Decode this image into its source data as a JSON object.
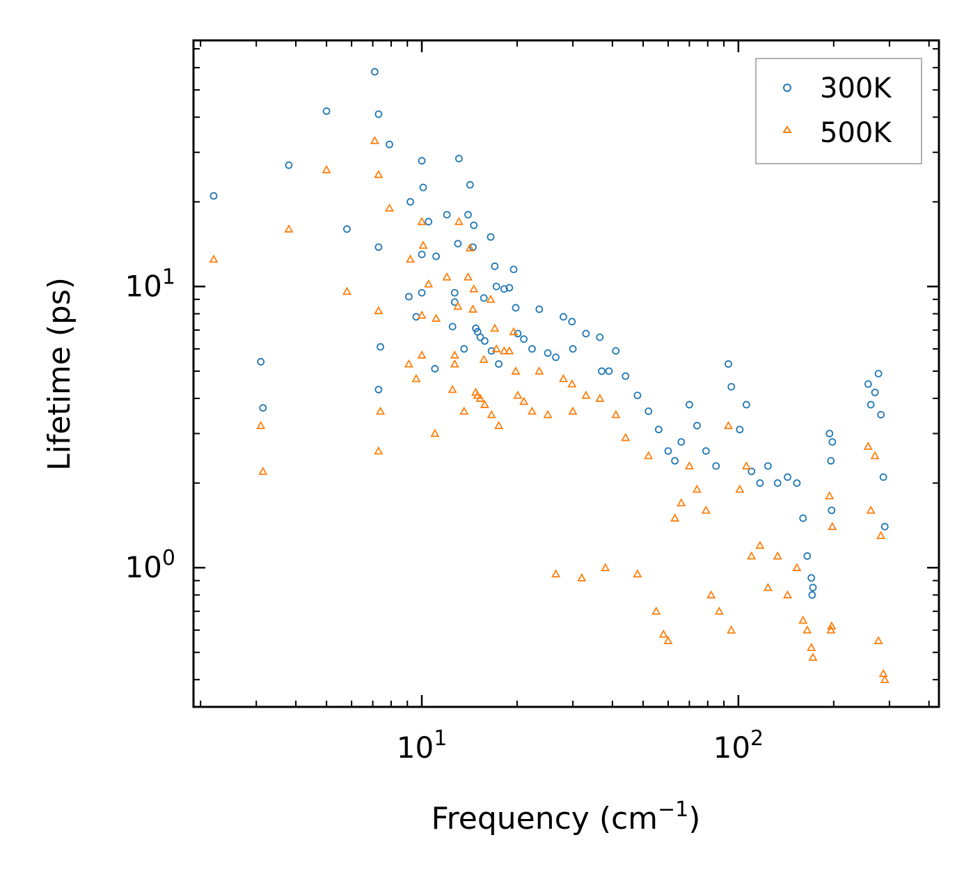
{
  "chart_data": {
    "type": "scatter",
    "title": "",
    "xlabel": "Frequency (cm",
    "xlabel_sup": "−1",
    "xlabel_close": ")",
    "ylabel": "Lifetime (ps)",
    "xscale": "log",
    "yscale": "log",
    "xlim": [
      1.9,
      430
    ],
    "ylim": [
      0.32,
      75
    ],
    "x_major_ticks": [
      {
        "value": 10,
        "base": "10",
        "exp": "1"
      },
      {
        "value": 100,
        "base": "10",
        "exp": "2"
      }
    ],
    "y_major_ticks": [
      {
        "value": 1,
        "base": "10",
        "exp": "0"
      },
      {
        "value": 10,
        "base": "10",
        "exp": "1"
      }
    ],
    "legend_position": "top-right",
    "series": [
      {
        "name": "300K",
        "marker": "circle",
        "color": "#1f77b4",
        "points": [
          [
            2.2,
            21.0
          ],
          [
            3.1,
            5.4
          ],
          [
            3.15,
            3.7
          ],
          [
            3.8,
            27.0
          ],
          [
            5.0,
            42.0
          ],
          [
            5.8,
            16.0
          ],
          [
            7.1,
            58.0
          ],
          [
            7.3,
            41.0
          ],
          [
            7.3,
            13.8
          ],
          [
            7.4,
            6.1
          ],
          [
            7.3,
            4.3
          ],
          [
            7.9,
            32.0
          ],
          [
            9.2,
            20.0
          ],
          [
            9.1,
            9.2
          ],
          [
            9.6,
            7.8
          ],
          [
            10.0,
            28.0
          ],
          [
            10.1,
            22.5
          ],
          [
            10.0,
            13.0
          ],
          [
            10.0,
            9.5
          ],
          [
            10.5,
            17.0
          ],
          [
            11.1,
            12.8
          ],
          [
            11.0,
            5.1
          ],
          [
            12.0,
            18.0
          ],
          [
            12.5,
            7.2
          ],
          [
            12.7,
            9.5
          ],
          [
            12.7,
            8.8
          ],
          [
            13.0,
            14.2
          ],
          [
            13.1,
            28.5
          ],
          [
            13.6,
            6.0
          ],
          [
            14.0,
            18.0
          ],
          [
            14.2,
            23.0
          ],
          [
            14.6,
            16.5
          ],
          [
            14.5,
            13.8
          ],
          [
            14.8,
            7.1
          ],
          [
            15.0,
            6.9
          ],
          [
            15.3,
            6.6
          ],
          [
            15.7,
            9.1
          ],
          [
            15.8,
            6.4
          ],
          [
            16.5,
            15.0
          ],
          [
            16.6,
            5.9
          ],
          [
            17.0,
            11.8
          ],
          [
            17.2,
            10.0
          ],
          [
            17.5,
            5.3
          ],
          [
            18.2,
            9.8
          ],
          [
            18.9,
            9.9
          ],
          [
            19.5,
            11.5
          ],
          [
            19.8,
            8.4
          ],
          [
            20.1,
            6.8
          ],
          [
            21.0,
            6.5
          ],
          [
            22.3,
            6.0
          ],
          [
            23.5,
            8.3
          ],
          [
            25.0,
            5.8
          ],
          [
            26.5,
            5.6
          ],
          [
            28.0,
            7.8
          ],
          [
            29.8,
            7.5
          ],
          [
            30.0,
            6.0
          ],
          [
            33.0,
            6.8
          ],
          [
            36.5,
            6.6
          ],
          [
            41.0,
            5.9
          ],
          [
            37.0,
            5.0
          ],
          [
            39.0,
            5.0
          ],
          [
            44.0,
            4.8
          ],
          [
            48.0,
            4.1
          ],
          [
            52.0,
            3.6
          ],
          [
            56.0,
            3.1
          ],
          [
            60.0,
            2.6
          ],
          [
            63.0,
            2.4
          ],
          [
            66.0,
            2.8
          ],
          [
            70.0,
            3.8
          ],
          [
            74.0,
            3.2
          ],
          [
            79.0,
            2.6
          ],
          [
            85.0,
            2.3
          ],
          [
            93.0,
            5.3
          ],
          [
            95.0,
            4.4
          ],
          [
            101.0,
            3.1
          ],
          [
            106.0,
            3.8
          ],
          [
            110.0,
            2.2
          ],
          [
            117.0,
            2.0
          ],
          [
            124.0,
            2.3
          ],
          [
            133.0,
            2.0
          ],
          [
            143.0,
            2.1
          ],
          [
            153.0,
            2.0
          ],
          [
            160.0,
            1.5
          ],
          [
            165.0,
            1.1
          ],
          [
            170.0,
            0.92
          ],
          [
            172.0,
            0.85
          ],
          [
            171.0,
            0.8
          ],
          [
            194.0,
            3.0
          ],
          [
            196.0,
            2.4
          ],
          [
            198.0,
            2.8
          ],
          [
            197.0,
            1.6
          ],
          [
            257.0,
            4.5
          ],
          [
            262.0,
            3.8
          ],
          [
            270.0,
            4.2
          ],
          [
            277.0,
            4.9
          ],
          [
            282.0,
            3.5
          ],
          [
            287.0,
            2.1
          ],
          [
            290.0,
            1.4
          ]
        ]
      },
      {
        "name": "500K",
        "marker": "triangle",
        "color": "#ff7f0e",
        "points": [
          [
            2.2,
            12.5
          ],
          [
            3.1,
            3.2
          ],
          [
            3.15,
            2.2
          ],
          [
            3.8,
            16.0
          ],
          [
            5.0,
            26.0
          ],
          [
            5.8,
            9.6
          ],
          [
            7.1,
            33.0
          ],
          [
            7.3,
            25.0
          ],
          [
            7.3,
            8.2
          ],
          [
            7.4,
            3.6
          ],
          [
            7.3,
            2.6
          ],
          [
            7.9,
            19.0
          ],
          [
            9.2,
            12.5
          ],
          [
            9.1,
            5.3
          ],
          [
            9.6,
            4.7
          ],
          [
            10.0,
            17.0
          ],
          [
            10.1,
            14.0
          ],
          [
            10.0,
            7.9
          ],
          [
            10.0,
            5.7
          ],
          [
            10.5,
            10.2
          ],
          [
            11.1,
            7.7
          ],
          [
            11.0,
            3.0
          ],
          [
            12.0,
            10.8
          ],
          [
            12.5,
            4.3
          ],
          [
            12.7,
            5.7
          ],
          [
            12.7,
            5.3
          ],
          [
            13.0,
            8.5
          ],
          [
            13.1,
            17.0
          ],
          [
            13.6,
            3.6
          ],
          [
            14.0,
            10.8
          ],
          [
            14.2,
            13.7
          ],
          [
            14.6,
            9.8
          ],
          [
            14.5,
            8.3
          ],
          [
            14.8,
            4.2
          ],
          [
            15.0,
            4.1
          ],
          [
            15.3,
            4.0
          ],
          [
            15.7,
            5.5
          ],
          [
            15.8,
            3.8
          ],
          [
            16.5,
            9.0
          ],
          [
            16.6,
            3.5
          ],
          [
            17.0,
            7.1
          ],
          [
            17.2,
            6.0
          ],
          [
            17.5,
            3.2
          ],
          [
            18.2,
            5.9
          ],
          [
            18.9,
            5.9
          ],
          [
            19.5,
            6.9
          ],
          [
            19.8,
            5.0
          ],
          [
            20.1,
            4.1
          ],
          [
            21.0,
            3.9
          ],
          [
            22.3,
            3.6
          ],
          [
            23.5,
            5.0
          ],
          [
            25.0,
            3.5
          ],
          [
            26.5,
            0.95
          ],
          [
            28.0,
            4.7
          ],
          [
            29.8,
            4.5
          ],
          [
            30.0,
            3.6
          ],
          [
            32.0,
            0.92
          ],
          [
            33.0,
            4.1
          ],
          [
            36.5,
            4.0
          ],
          [
            38.0,
            1.0
          ],
          [
            41.0,
            3.5
          ],
          [
            44.0,
            2.9
          ],
          [
            48.0,
            0.95
          ],
          [
            52.0,
            2.5
          ],
          [
            55.0,
            0.7
          ],
          [
            58.0,
            0.58
          ],
          [
            60.0,
            0.55
          ],
          [
            63.0,
            1.5
          ],
          [
            66.0,
            1.7
          ],
          [
            70.0,
            2.3
          ],
          [
            74.0,
            1.9
          ],
          [
            79.0,
            1.6
          ],
          [
            82.0,
            0.8
          ],
          [
            87.0,
            0.7
          ],
          [
            93.0,
            3.2
          ],
          [
            95.0,
            0.6
          ],
          [
            101.0,
            1.9
          ],
          [
            106.0,
            2.3
          ],
          [
            110.0,
            1.1
          ],
          [
            117.0,
            1.2
          ],
          [
            124.0,
            0.85
          ],
          [
            133.0,
            1.1
          ],
          [
            143.0,
            0.8
          ],
          [
            153.0,
            1.0
          ],
          [
            160.0,
            0.65
          ],
          [
            165.0,
            0.6
          ],
          [
            170.0,
            0.52
          ],
          [
            172.0,
            0.48
          ],
          [
            194.0,
            1.8
          ],
          [
            196.0,
            0.6
          ],
          [
            198.0,
            1.4
          ],
          [
            197.0,
            0.62
          ],
          [
            257.0,
            2.7
          ],
          [
            262.0,
            1.6
          ],
          [
            270.0,
            2.5
          ],
          [
            277.0,
            0.55
          ],
          [
            282.0,
            1.3
          ],
          [
            287.0,
            0.42
          ],
          [
            290.0,
            0.4
          ]
        ]
      }
    ]
  }
}
